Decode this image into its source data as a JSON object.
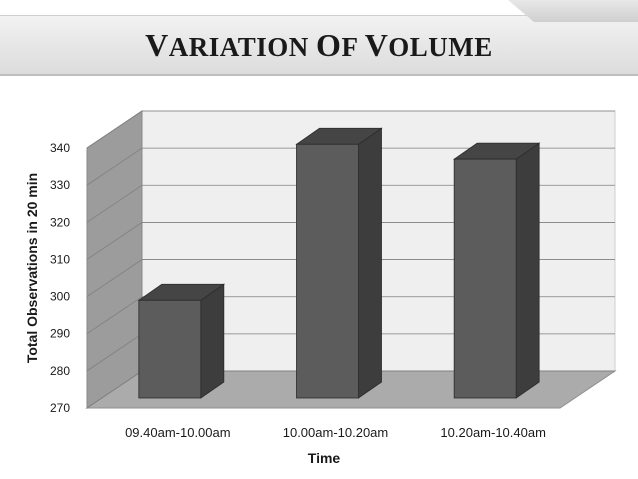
{
  "slide": {
    "title_parts": [
      {
        "big": "V",
        "rest": "ARIATION "
      },
      {
        "big": "O",
        "rest": "F "
      },
      {
        "big": "V",
        "rest": "OLUME"
      }
    ]
  },
  "chart_data": {
    "type": "bar",
    "title": "Variation Of Volume",
    "categories": [
      "09.40am-10.00am",
      "10.00am-10.20am",
      "10.20am-10.40am"
    ],
    "values": [
      299,
      341,
      337
    ],
    "xlabel": "Time",
    "ylabel": "Total Observations in 20 min",
    "ylim": [
      270,
      340
    ],
    "yticks": [
      270,
      280,
      290,
      300,
      310,
      320,
      330,
      340
    ],
    "grid": true,
    "style": "3d",
    "colors": {
      "bar_front": "#5c5c5c",
      "bar_side": "#3d3d3d",
      "bar_top": "#454545",
      "back_wall": "#efefef",
      "side_wall": "#9c9c9c",
      "floor": "#ababab",
      "grid": "#7f7f7f"
    }
  }
}
